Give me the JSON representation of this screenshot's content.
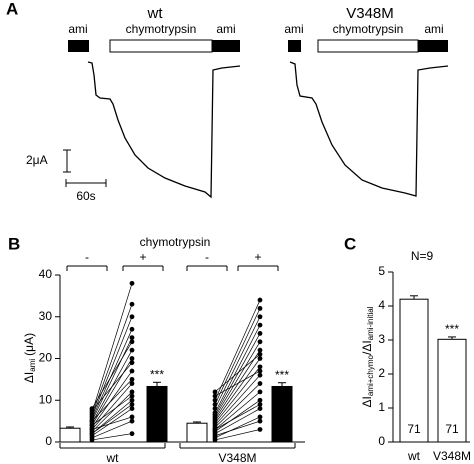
{
  "panel_a": {
    "label": "A",
    "traces": [
      {
        "title": "wt",
        "bars": [
          "ami",
          "chymotrypsin",
          "ami"
        ]
      },
      {
        "title": "V348M",
        "bars": [
          "ami",
          "chymotrypsin",
          "ami"
        ]
      }
    ],
    "scale_current": "2μA",
    "scale_time": "60s"
  },
  "chart_data": [
    {
      "type": "bar",
      "label": "B",
      "title": "chymotrypsin",
      "y_label": {
        "main": "ΔI",
        "sub": "ami",
        "unit": "(μA)"
      },
      "categories": [
        "-",
        "+",
        "-",
        "+"
      ],
      "fills": [
        "#ffffff",
        "#000000",
        "#ffffff",
        "#000000"
      ],
      "values": [
        3.3,
        13.3,
        4.5,
        13.3
      ],
      "errors": [
        0.3,
        1.0,
        0.3,
        0.9
      ],
      "significance": [
        null,
        "***",
        null,
        "***"
      ],
      "groups": [
        {
          "name": "wt",
          "before": [
            0.5,
            1,
            1.5,
            2,
            2.5,
            3,
            3,
            3.5,
            4,
            4,
            4.5,
            5,
            5,
            5.5,
            6,
            6.5,
            7,
            7.5,
            8,
            2
          ],
          "after": [
            2,
            5,
            8,
            10,
            12,
            14,
            6,
            17,
            20,
            11,
            22,
            25,
            15,
            27,
            30,
            33,
            38,
            19,
            24,
            9
          ]
        },
        {
          "name": "V348M",
          "before": [
            0.5,
            1,
            2,
            2.5,
            3,
            3.5,
            4,
            4.5,
            5,
            5.5,
            6,
            6.5,
            7,
            8,
            9,
            10,
            11,
            12,
            3,
            1.5
          ],
          "after": [
            3,
            6,
            8,
            10,
            12,
            14,
            16,
            18,
            20,
            22,
            24,
            26,
            28,
            30,
            32,
            34,
            17,
            21,
            9,
            5
          ]
        }
      ],
      "ylim": [
        0,
        40
      ],
      "yticks": [
        0,
        10,
        20,
        30,
        40
      ]
    },
    {
      "type": "bar",
      "label": "C",
      "annotation": "N=9",
      "y_label": {
        "num": "ΔI",
        "num_sub": "ami+chymo",
        "sep": "/",
        "den": "ΔI",
        "den_sub": "ami-initial"
      },
      "categories": [
        "wt",
        "V348M"
      ],
      "fills": [
        "#ffffff",
        "#ffffff"
      ],
      "values": [
        4.2,
        3.02
      ],
      "errors": [
        0.1,
        0.07
      ],
      "n": [
        71,
        71
      ],
      "significance": [
        null,
        "***"
      ],
      "ylim": [
        0,
        5
      ],
      "yticks": [
        0,
        1,
        2,
        3,
        4,
        5
      ]
    }
  ]
}
